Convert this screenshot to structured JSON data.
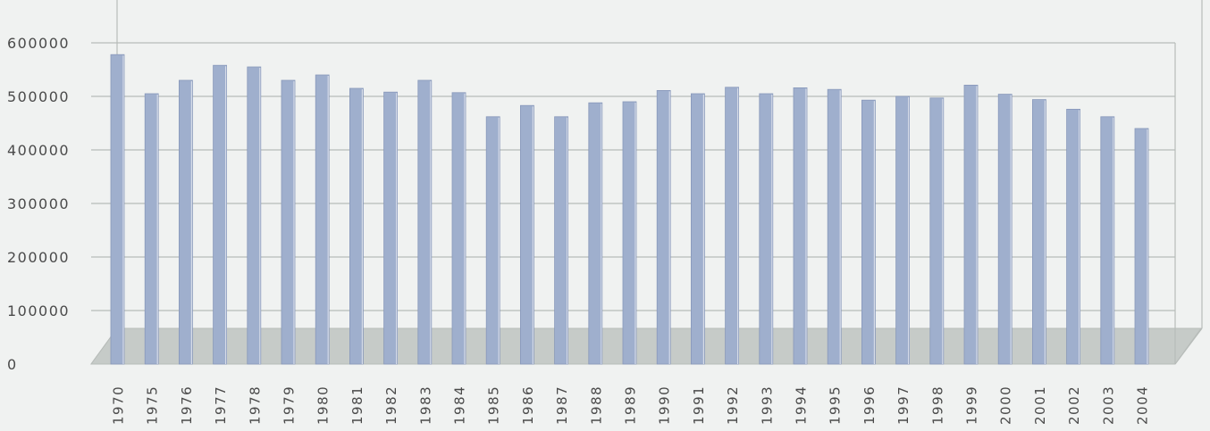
{
  "chart_data": {
    "type": "bar",
    "title": "",
    "xlabel": "",
    "ylabel": "",
    "ylim": [
      0,
      600000
    ],
    "yticks": [
      0,
      100000,
      200000,
      300000,
      400000,
      500000,
      600000
    ],
    "ytick_labels": [
      "0",
      "100000",
      "200000",
      "300000",
      "400000",
      "500000",
      "600000"
    ],
    "grid": true,
    "legend": "none",
    "categories": [
      "1970",
      "1975",
      "1976",
      "1977",
      "1978",
      "1979",
      "1980",
      "1981",
      "1982",
      "1983",
      "1984",
      "1985",
      "1986",
      "1987",
      "1988",
      "1989",
      "1990",
      "1991",
      "1992",
      "1993",
      "1994",
      "1995",
      "1996",
      "1997",
      "1998",
      "1999",
      "2000",
      "2001",
      "2002",
      "2003",
      "2004"
    ],
    "values": [
      578000,
      505000,
      530000,
      558000,
      555000,
      530000,
      540000,
      515000,
      508000,
      530000,
      507000,
      462000,
      483000,
      462000,
      488000,
      490000,
      511000,
      505000,
      517000,
      505000,
      516000,
      513000,
      493000,
      500000,
      497000,
      521000,
      504000,
      494000,
      476000,
      462000,
      440000
    ],
    "colors": {
      "bar": "#9fafcd",
      "bar_edge": "#8898ba",
      "floor": "#c6cbc8",
      "grid": "#b7bcb9",
      "axis_text": "#4a4a4a",
      "background": "#f0f2f1"
    }
  }
}
